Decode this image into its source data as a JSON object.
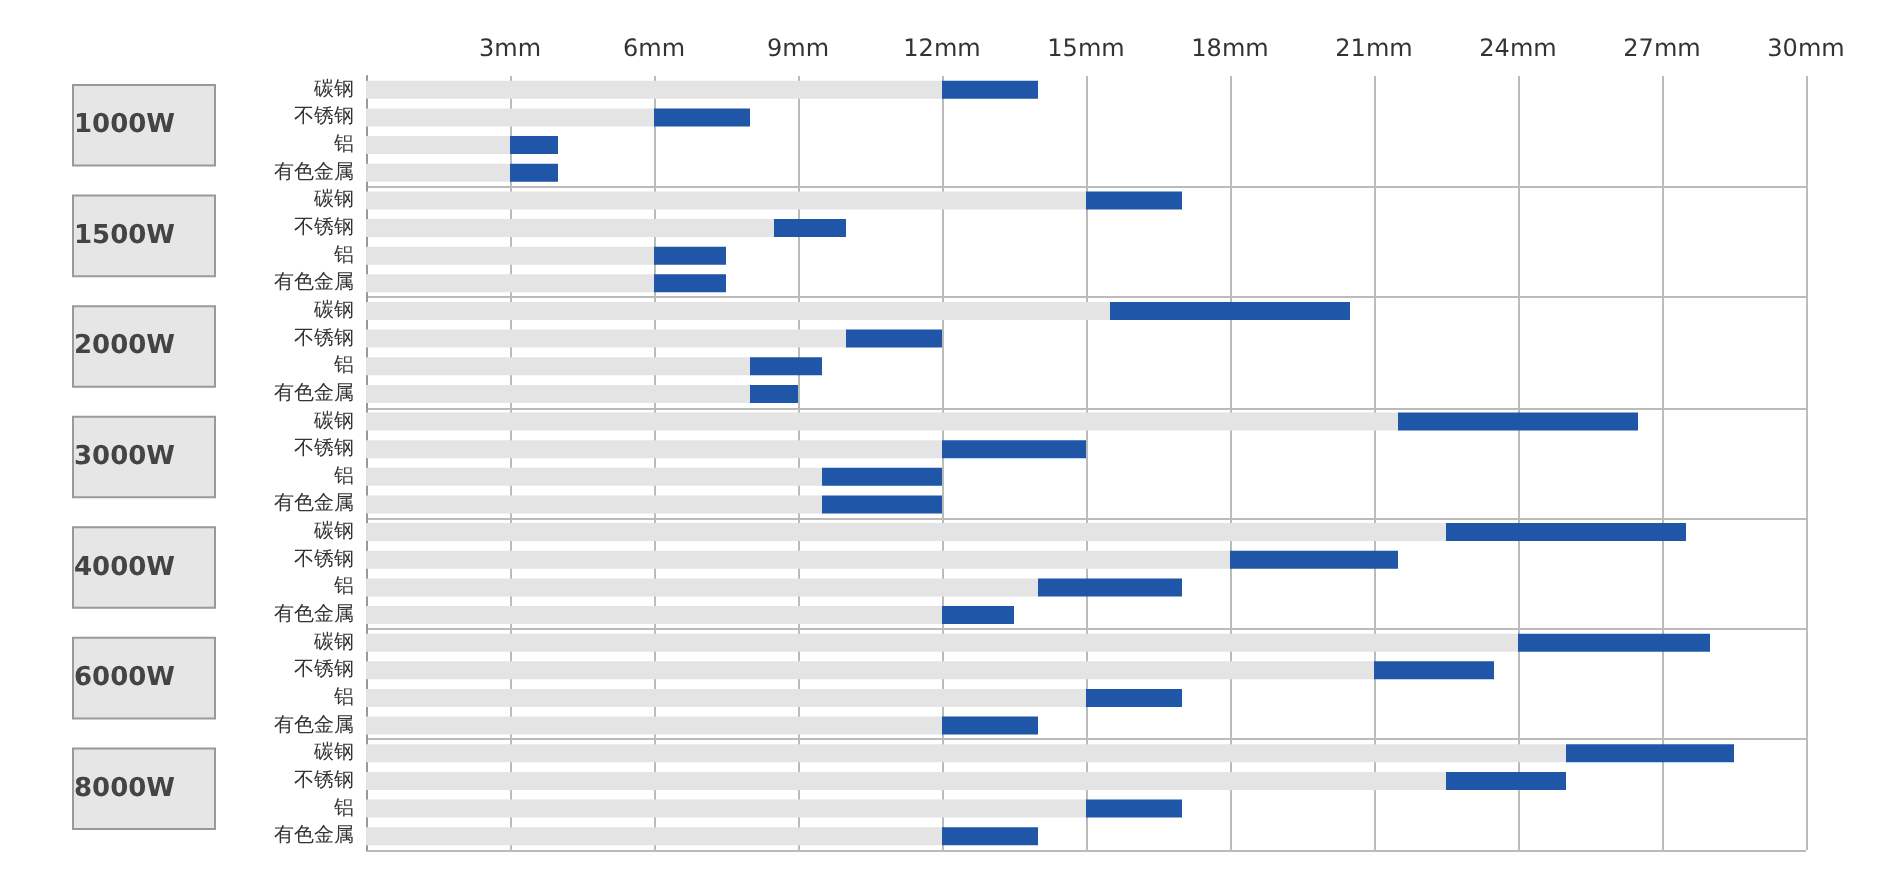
{
  "chart_data": {
    "type": "bar",
    "orientation": "horizontal",
    "stacked": true,
    "categories": [
      "碳钢",
      "不锈钢",
      "铝",
      "有色金属",
      "碳钢",
      "不锈钢",
      "铝",
      "有色金属",
      "碳钢",
      "不锈钢",
      "铝",
      "有色金属",
      "碳钢",
      "不锈钢",
      "铝",
      "有色金属",
      "碳钢",
      "不锈钢",
      "铝",
      "有色金属",
      "碳钢",
      "不锈钢",
      "铝",
      "有色金属",
      "碳钢",
      "不锈钢",
      "铝",
      "有色金属"
    ],
    "series": [
      {
        "color": "#e4e4e4",
        "values": [
          12,
          6,
          3,
          3,
          15,
          8.5,
          6,
          6,
          15.5,
          10,
          8,
          8,
          21.5,
          12,
          9.5,
          9.5,
          22.5,
          18,
          14,
          12,
          24,
          21,
          15,
          12,
          25,
          22.5,
          15,
          12
        ]
      },
      {
        "color": "#1f56a8",
        "values": [
          2,
          2,
          1,
          1,
          2,
          1.5,
          1.5,
          1.5,
          5,
          2,
          1.5,
          1,
          5,
          3,
          2.5,
          2.5,
          5,
          3.5,
          3,
          1.5,
          4,
          2.5,
          2,
          2,
          3.5,
          2.5,
          2,
          2
        ]
      }
    ],
    "xlim": [
      0,
      30
    ],
    "xticks": [
      {
        "value": 3,
        "label": "3mm"
      },
      {
        "value": 6,
        "label": "6mm"
      },
      {
        "value": 9,
        "label": "9mm"
      },
      {
        "value": 12,
        "label": "12mm"
      },
      {
        "value": 15,
        "label": "15mm"
      },
      {
        "value": 18,
        "label": "18mm"
      },
      {
        "value": 21,
        "label": "21mm"
      },
      {
        "value": 24,
        "label": "24mm"
      },
      {
        "value": 27,
        "label": "27mm"
      },
      {
        "value": 30,
        "label": "30mm"
      }
    ],
    "annotations": [
      "1000W",
      "1500W",
      "2000W",
      "3000W",
      "4000W",
      "6000W",
      "8000W"
    ],
    "grid": true
  }
}
